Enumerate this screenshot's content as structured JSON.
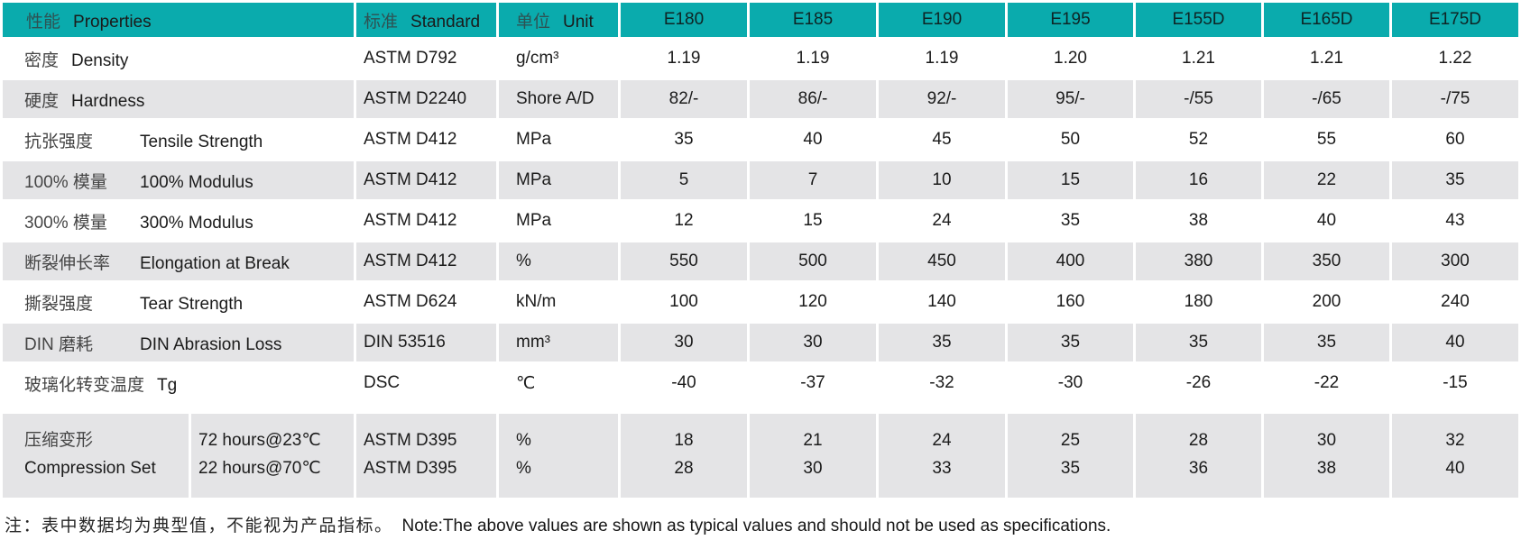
{
  "colors": {
    "header_bg": "#0aabad",
    "row_alt_bg": "#e4e4e6",
    "row_bg": "#ffffff",
    "text": "#1b1b1b"
  },
  "table": {
    "header": {
      "properties_zh": "性能",
      "properties_en": "Properties",
      "standard_zh": "标准",
      "standard_en": "Standard",
      "unit_zh": "单位",
      "unit_en": "Unit",
      "grades": [
        "E180",
        "E185",
        "E190",
        "E195",
        "E155D",
        "E165D",
        "E175D"
      ]
    },
    "rows": [
      {
        "zh": "密度",
        "en": "Density",
        "standard": "ASTM D792",
        "unit": "g/cm³",
        "values": [
          "1.19",
          "1.19",
          "1.19",
          "1.20",
          "1.21",
          "1.21",
          "1.22"
        ]
      },
      {
        "zh": "硬度",
        "en": "Hardness",
        "standard": "ASTM D2240",
        "unit": "Shore A/D",
        "values": [
          "82/-",
          "86/-",
          "92/-",
          "95/-",
          "-/55",
          "-/65",
          "-/75"
        ]
      },
      {
        "zh": "抗张强度",
        "en": "Tensile Strength",
        "standard": "ASTM D412",
        "unit": "MPa",
        "values": [
          "35",
          "40",
          "45",
          "50",
          "52",
          "55",
          "60"
        ]
      },
      {
        "zh": "100% 模量",
        "en": "100% Modulus",
        "standard": "ASTM D412",
        "unit": "MPa",
        "values": [
          "5",
          "7",
          "10",
          "15",
          "16",
          "22",
          "35"
        ]
      },
      {
        "zh": "300% 模量",
        "en": "300% Modulus",
        "standard": "ASTM D412",
        "unit": "MPa",
        "values": [
          "12",
          "15",
          "24",
          "35",
          "38",
          "40",
          "43"
        ]
      },
      {
        "zh": "断裂伸长率",
        "en": "Elongation at Break",
        "standard": "ASTM D412",
        "unit": "%",
        "values": [
          "550",
          "500",
          "450",
          "400",
          "380",
          "350",
          "300"
        ]
      },
      {
        "zh": "撕裂强度",
        "en": "Tear Strength",
        "standard": "ASTM D624",
        "unit": "kN/m",
        "values": [
          "100",
          "120",
          "140",
          "160",
          "180",
          "200",
          "240"
        ]
      },
      {
        "zh": "DIN 磨耗",
        "en": "DIN Abrasion Loss",
        "standard": "DIN 53516",
        "unit": "mm³",
        "values": [
          "30",
          "30",
          "35",
          "35",
          "35",
          "35",
          "40"
        ]
      },
      {
        "zh": "玻璃化转变温度",
        "en": "Tg",
        "standard": "DSC",
        "unit": "℃",
        "values": [
          "-40",
          "-37",
          "-32",
          "-30",
          "-26",
          "-22",
          "-15"
        ]
      }
    ],
    "compression_row": {
      "zh": "压缩变形",
      "en": "Compression Set",
      "conditions": [
        "72 hours@23℃",
        "22 hours@70℃"
      ],
      "standards": [
        "ASTM D395",
        "ASTM D395"
      ],
      "units": [
        "%",
        "%"
      ],
      "values_line1": [
        "18",
        "21",
        "24",
        "25",
        "28",
        "30",
        "32"
      ],
      "values_line2": [
        "28",
        "30",
        "33",
        "35",
        "36",
        "38",
        "40"
      ]
    }
  },
  "footnote": {
    "zh": "注：表中数据均为典型值，不能视为产品指标。",
    "en": "Note:The above values are shown as typical values and should not be used as specifications."
  }
}
